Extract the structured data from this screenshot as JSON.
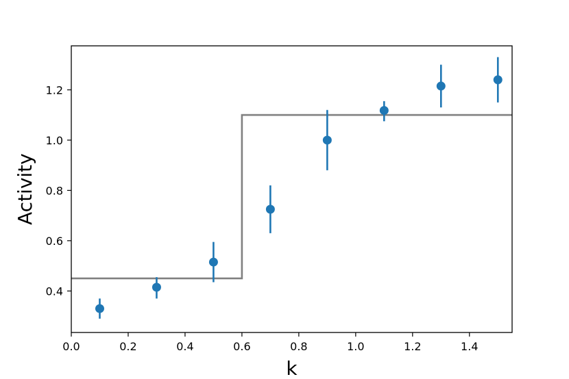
{
  "chart_data": {
    "type": "scatter",
    "title": "",
    "xlabel": "k",
    "ylabel": "Activity",
    "xlim": [
      0.0,
      1.55
    ],
    "ylim": [
      0.235,
      1.375
    ],
    "grid": false,
    "colors": {
      "points": "#1f77b4",
      "step": "#808080",
      "axes": "#000000"
    },
    "xticks": [
      {
        "value": 0.0,
        "label": "0.0"
      },
      {
        "value": 0.2,
        "label": "0.2"
      },
      {
        "value": 0.4,
        "label": "0.4"
      },
      {
        "value": 0.6,
        "label": "0.6"
      },
      {
        "value": 0.8,
        "label": "0.8"
      },
      {
        "value": 1.0,
        "label": "1.0"
      },
      {
        "value": 1.2,
        "label": "1.2"
      },
      {
        "value": 1.4,
        "label": "1.4"
      }
    ],
    "yticks": [
      {
        "value": 0.4,
        "label": "0.4"
      },
      {
        "value": 0.6,
        "label": "0.6"
      },
      {
        "value": 0.8,
        "label": "0.8"
      },
      {
        "value": 1.0,
        "label": "1.0"
      },
      {
        "value": 1.2,
        "label": "1.2"
      }
    ],
    "points": [
      {
        "x": 0.1,
        "y": 0.33,
        "low": 0.29,
        "high": 0.37
      },
      {
        "x": 0.3,
        "y": 0.415,
        "low": 0.37,
        "high": 0.455
      },
      {
        "x": 0.5,
        "y": 0.515,
        "low": 0.435,
        "high": 0.595
      },
      {
        "x": 0.7,
        "y": 0.725,
        "low": 0.63,
        "high": 0.82
      },
      {
        "x": 0.9,
        "y": 1.0,
        "low": 0.88,
        "high": 1.12
      },
      {
        "x": 1.1,
        "y": 1.118,
        "low": 1.075,
        "high": 1.155
      },
      {
        "x": 1.3,
        "y": 1.215,
        "low": 1.13,
        "high": 1.3
      },
      {
        "x": 1.5,
        "y": 1.24,
        "low": 1.15,
        "high": 1.33
      }
    ],
    "step": [
      {
        "x": 0.0,
        "y": 0.45
      },
      {
        "x": 0.6,
        "y": 0.45
      },
      {
        "x": 0.6,
        "y": 1.1
      },
      {
        "x": 1.55,
        "y": 1.1
      }
    ]
  }
}
